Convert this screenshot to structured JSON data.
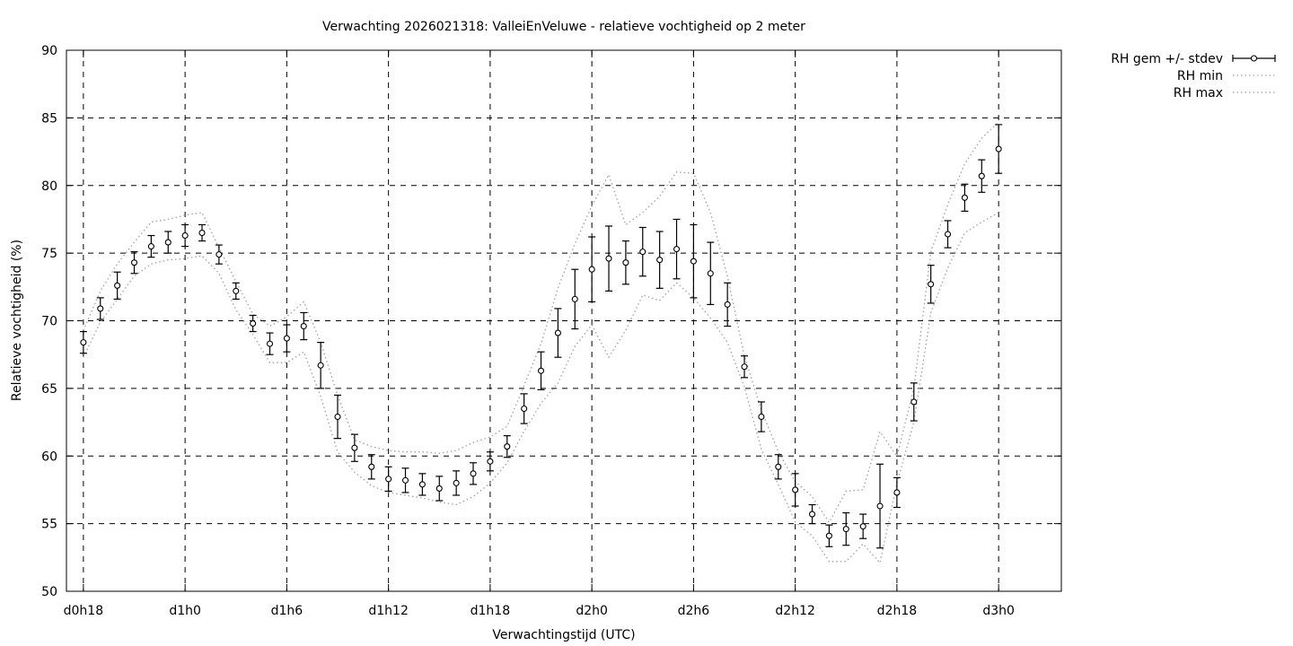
{
  "chart_data": {
    "type": "line",
    "title": "Verwachting 2026021318: ValleiEnVeluwe - relatieve vochtigheid op 2 meter",
    "xlabel": "Verwachtingstijd (UTC)",
    "ylabel": "Relatieve vochtigheid (%)",
    "ylim": [
      50,
      90
    ],
    "yticks": [
      50,
      55,
      60,
      65,
      70,
      75,
      80,
      85,
      90
    ],
    "xlim": [
      17.0,
      75.7
    ],
    "xticks": [
      {
        "x": 18,
        "label": "d0h18"
      },
      {
        "x": 24,
        "label": "d1h0"
      },
      {
        "x": 30,
        "label": "d1h6"
      },
      {
        "x": 36,
        "label": "d1h12"
      },
      {
        "x": 42,
        "label": "d1h18"
      },
      {
        "x": 48,
        "label": "d2h0"
      },
      {
        "x": 54,
        "label": "d2h6"
      },
      {
        "x": 60,
        "label": "d2h12"
      },
      {
        "x": 66,
        "label": "d2h18"
      },
      {
        "x": 72,
        "label": "d3h0"
      }
    ],
    "grid": true,
    "legend_position": "outside-top-right",
    "x": [
      18,
      19,
      20,
      21,
      22,
      23,
      24,
      25,
      26,
      27,
      28,
      29,
      30,
      31,
      32,
      33,
      34,
      35,
      36,
      37,
      38,
      39,
      40,
      41,
      42,
      43,
      44,
      45,
      46,
      47,
      48,
      49,
      50,
      51,
      52,
      53,
      54,
      55,
      56,
      57,
      58,
      59,
      60,
      61,
      62,
      63,
      64,
      65,
      66,
      67,
      68,
      69,
      70,
      71,
      72
    ],
    "series": [
      {
        "name": "RH gem +/- stdev",
        "style": "points-errorbars",
        "values": [
          68.4,
          70.9,
          72.6,
          74.3,
          75.5,
          75.8,
          76.3,
          76.5,
          74.9,
          72.2,
          69.8,
          68.3,
          68.7,
          69.6,
          66.7,
          62.9,
          60.6,
          59.2,
          58.3,
          58.2,
          57.9,
          57.6,
          58.0,
          58.7,
          59.6,
          60.7,
          63.5,
          66.3,
          69.1,
          71.6,
          73.8,
          74.6,
          74.3,
          75.1,
          74.5,
          75.3,
          74.4,
          73.5,
          71.2,
          66.6,
          62.9,
          59.2,
          57.5,
          55.7,
          54.1,
          54.6,
          54.8,
          56.3,
          57.3,
          64.0,
          72.7,
          76.4,
          79.1,
          80.7,
          82.7
        ],
        "stdev": [
          0.8,
          0.8,
          1.0,
          0.8,
          0.8,
          0.8,
          0.8,
          0.6,
          0.7,
          0.6,
          0.6,
          0.8,
          1.0,
          1.0,
          1.7,
          1.6,
          1.0,
          0.9,
          0.9,
          0.9,
          0.8,
          0.9,
          0.9,
          0.8,
          0.7,
          0.8,
          1.1,
          1.4,
          1.8,
          2.2,
          2.4,
          2.4,
          1.6,
          1.8,
          2.1,
          2.2,
          2.7,
          2.3,
          1.6,
          0.8,
          1.1,
          0.9,
          1.2,
          0.7,
          0.8,
          1.2,
          0.9,
          3.1,
          1.1,
          1.4,
          1.4,
          1.0,
          1.0,
          1.2,
          1.8
        ]
      },
      {
        "name": "RH min",
        "style": "dotted",
        "values": [
          67.3,
          69.9,
          71.6,
          73.3,
          74.2,
          74.5,
          74.6,
          74.8,
          73.5,
          70.8,
          69.0,
          66.9,
          66.9,
          67.7,
          64.4,
          60.3,
          58.8,
          57.8,
          57.3,
          57.1,
          56.9,
          56.6,
          56.4,
          57.0,
          58.0,
          59.5,
          61.8,
          63.9,
          65.4,
          68.1,
          69.7,
          67.3,
          69.3,
          71.9,
          71.5,
          72.8,
          71.7,
          70.2,
          68.4,
          65.1,
          60.5,
          57.9,
          55.1,
          54.1,
          52.2,
          52.2,
          53.5,
          52.1,
          58.0,
          62.5,
          70.6,
          73.9,
          76.5,
          77.3,
          78.0
        ]
      },
      {
        "name": "RH max",
        "style": "dotted",
        "values": [
          69.3,
          72.2,
          74.2,
          75.8,
          77.3,
          77.5,
          77.8,
          78.0,
          75.4,
          72.9,
          70.5,
          69.6,
          70.3,
          71.4,
          68.4,
          64.5,
          61.2,
          60.7,
          60.4,
          60.3,
          60.3,
          60.2,
          60.4,
          61.0,
          61.4,
          62.2,
          65.2,
          68.3,
          72.4,
          75.7,
          78.5,
          80.8,
          77.1,
          78.0,
          79.2,
          81.0,
          80.9,
          78.0,
          73.3,
          67.4,
          63.4,
          60.3,
          58.1,
          57.0,
          55.1,
          57.4,
          57.5,
          61.8,
          60.0,
          65.0,
          75.1,
          78.6,
          81.6,
          83.5,
          84.7
        ]
      }
    ]
  }
}
